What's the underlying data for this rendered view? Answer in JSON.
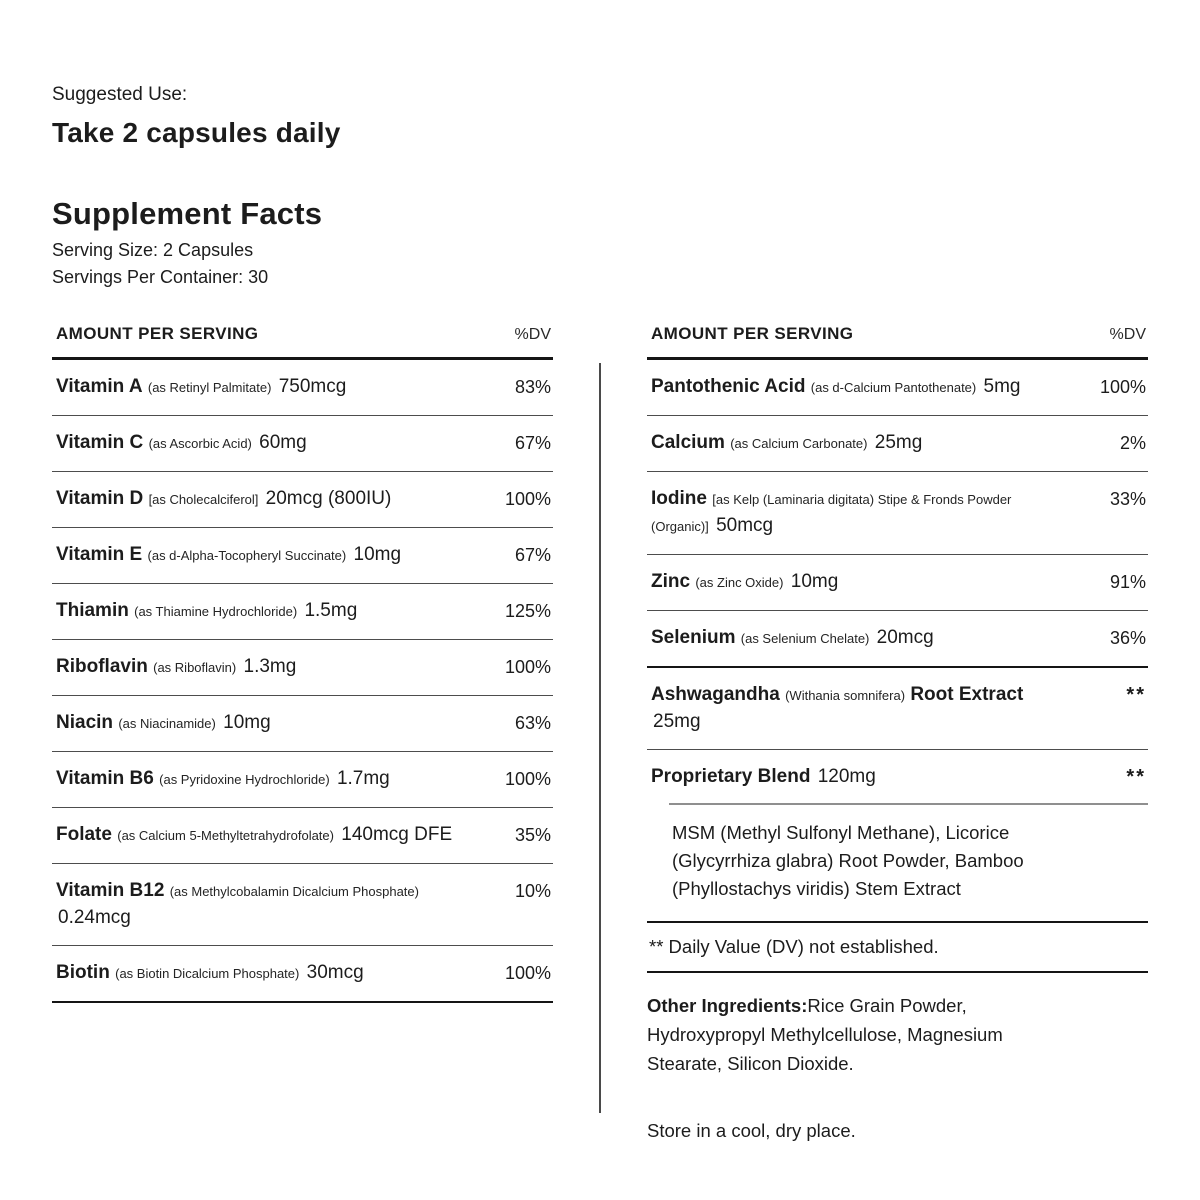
{
  "top": {
    "suggested_use_label": "Suggested Use:",
    "suggested_use_value": "Take 2 capsules daily",
    "title": "Supplement Facts",
    "serving_size": "Serving Size: 2 Capsules",
    "servings_per_container": "Servings Per Container: 30"
  },
  "table": {
    "col_header_amount": "AMOUNT PER SERVING",
    "col_header_dv": "%DV",
    "left_rows": [
      {
        "name": "Vitamin A",
        "detail": "(as Retinyl Palmitate)",
        "amount": "750mcg",
        "dv": "83%"
      },
      {
        "name": "Vitamin C",
        "detail": "(as Ascorbic Acid)",
        "amount": "60mg",
        "dv": "67%"
      },
      {
        "name": "Vitamin D",
        "detail": "[as Cholecalciferol]",
        "amount": "20mcg (800IU)",
        "dv": "100%"
      },
      {
        "name": "Vitamin E",
        "detail": "(as d-Alpha-Tocopheryl Succinate)",
        "amount": "10mg",
        "dv": "67%"
      },
      {
        "name": "Thiamin",
        "detail": "(as Thiamine Hydrochloride)",
        "amount": "1.5mg",
        "dv": "125%"
      },
      {
        "name": "Riboflavin",
        "detail": "(as Riboflavin)",
        "amount": "1.3mg",
        "dv": "100%"
      },
      {
        "name": "Niacin",
        "detail": "(as Niacinamide)",
        "amount": "10mg",
        "dv": "63%"
      },
      {
        "name": "Vitamin B6",
        "detail": "(as Pyridoxine Hydrochloride)",
        "amount": "1.7mg",
        "dv": "100%"
      },
      {
        "name": "Folate",
        "detail": "(as Calcium 5-Methyltetrahydrofolate)",
        "amount": "140mcg DFE",
        "dv": "35%"
      },
      {
        "name": "Vitamin B12",
        "detail": "(as Methylcobalamin Dicalcium Phosphate)",
        "amount": "0.24mcg",
        "dv": "10%"
      },
      {
        "name": "Biotin",
        "detail": "(as Biotin Dicalcium Phosphate)",
        "amount": "30mcg",
        "dv": "100%"
      }
    ],
    "right_rows": [
      {
        "name": "Pantothenic Acid",
        "detail": "(as d-Calcium Pantothenate)",
        "amount": "5mg",
        "dv": "100%"
      },
      {
        "name": "Calcium",
        "detail": "(as Calcium Carbonate)",
        "amount": "25mg",
        "dv": "2%"
      },
      {
        "name": "Iodine",
        "detail": "[as Kelp (Laminaria digitata) Stipe & Fronds Powder (Organic)]",
        "amount": "50mcg",
        "dv": "33%"
      },
      {
        "name": "Zinc",
        "detail": "(as Zinc Oxide)",
        "amount": "10mg",
        "dv": "91%"
      },
      {
        "name": "Selenium",
        "detail": "(as Selenium Chelate)",
        "amount": "20mcg",
        "dv": "36%"
      },
      {
        "name": "Ashwagandha",
        "detail": "(Withania somnifera)",
        "name2": "Root Extract",
        "amount": "25mg",
        "dv": "**"
      },
      {
        "name": "Proprietary Blend",
        "amount": "120mg",
        "dv": "**"
      }
    ]
  },
  "blend": {
    "contents": "MSM (Methyl Sulfonyl Methane), Licorice (Glycyrrhiza glabra) Root Powder, Bamboo (Phyllostachys viridis) Stem Extract"
  },
  "notes": {
    "dv_note": "** Daily Value (DV) not established.",
    "other_ingredients_label": "Other Ingredients:",
    "other_ingredients_value": "Rice Grain Powder, Hydroxypropyl Methylcellulose, Magnesium Stearate, Silicon Dioxide.",
    "storage": "Store in a cool, dry place."
  },
  "colors": {
    "text": "#1c1c1c",
    "rule_heavy": "#151515",
    "rule_light": "#4d4d4d"
  }
}
